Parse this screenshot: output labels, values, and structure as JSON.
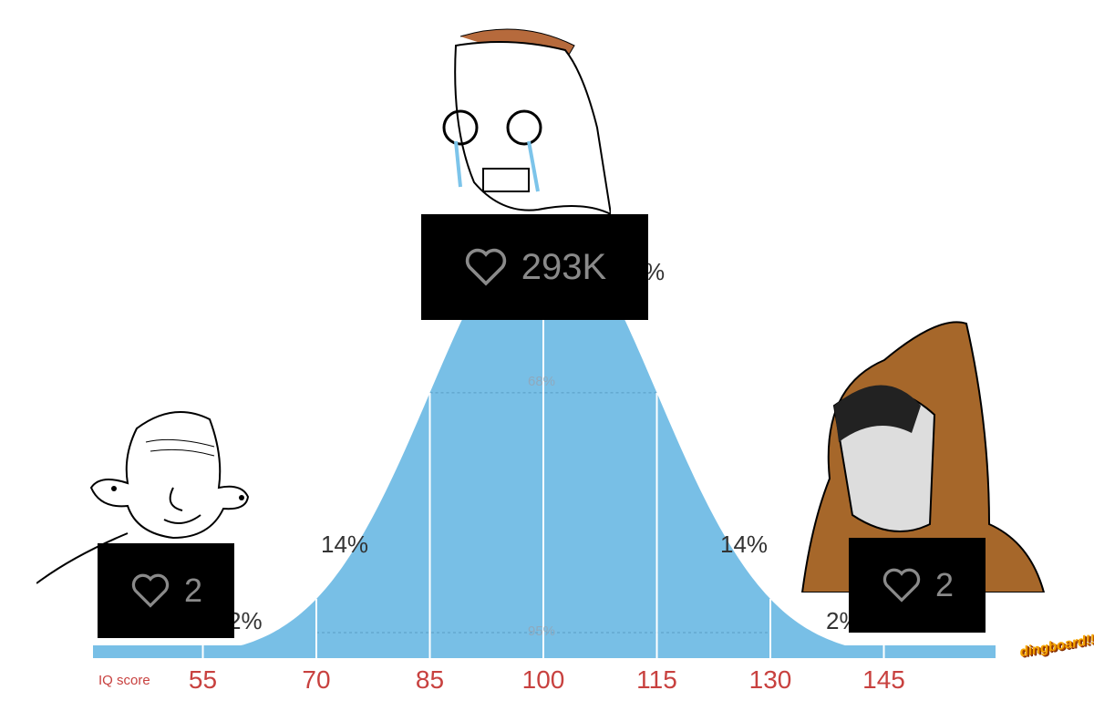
{
  "chart_data": {
    "type": "area",
    "xlabel": "IQ score",
    "x_ticks": [
      "55",
      "70",
      "85",
      "100",
      "115",
      "130",
      "145"
    ],
    "mean": 100,
    "sd": 15,
    "fill_color": "#78bfe6",
    "region_labels": {
      "center_top": "%",
      "inner": "68%",
      "outer": "95%",
      "left_mid": "14%",
      "right_mid": "14%",
      "left_tail": "2%",
      "right_tail": "2%"
    }
  },
  "likes": [
    {
      "icon": "heart-icon",
      "count": "293K"
    },
    {
      "icon": "heart-icon",
      "count": "2"
    },
    {
      "icon": "heart-icon",
      "count": "2"
    }
  ],
  "watermark": "dingboard!!"
}
